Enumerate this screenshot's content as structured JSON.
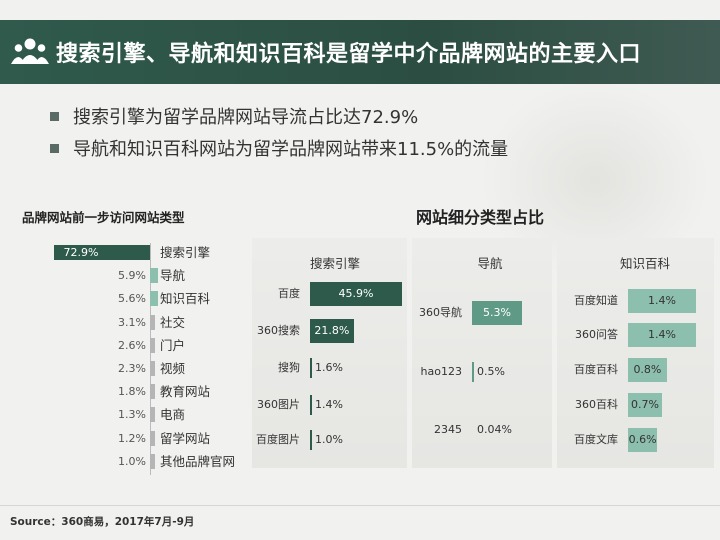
{
  "header": {
    "title": "搜索引擎、导航和知识百科是留学中介品牌网站的主要入口",
    "icon": "people-icon"
  },
  "bullets": [
    "搜索引擎为留学品牌网站导流占比达72.9%",
    "导航和知识百科网站为留学品牌网站带来11.5%的流量"
  ],
  "colors": {
    "dark_green": "#2d5a4a",
    "mid_green": "#5f9a86",
    "light_green": "#8dbfae",
    "gray_bar": "#b5b5b5"
  },
  "chart_data": [
    {
      "type": "bar",
      "title": "品牌网站前一步访问网站类型",
      "orientation": "horizontal",
      "categories": [
        "搜索引擎",
        "导航",
        "知识百科",
        "社交",
        "门户",
        "视频",
        "教育网站",
        "电商",
        "留学网站",
        "其他品牌官网"
      ],
      "values": [
        72.9,
        5.9,
        5.6,
        3.1,
        2.6,
        2.3,
        1.8,
        1.3,
        1.2,
        1.0
      ],
      "value_labels": [
        "72.9%",
        "5.9%",
        "5.6%",
        "3.1%",
        "2.6%",
        "2.3%",
        "1.8%",
        "1.3%",
        "1.2%",
        "1.0%"
      ],
      "unit": "%"
    },
    {
      "type": "bar",
      "title": "网站细分类型占比",
      "orientation": "horizontal",
      "groups": [
        {
          "name": "搜索引擎",
          "categories": [
            "百度",
            "360搜索",
            "搜狗",
            "360图片",
            "百度图片"
          ],
          "values": [
            45.9,
            21.8,
            1.6,
            1.4,
            1.0
          ],
          "value_labels": [
            "45.9%",
            "21.8%",
            "1.6%",
            "1.4%",
            "1.0%"
          ]
        },
        {
          "name": "导航",
          "categories": [
            "360导航",
            "hao123",
            "2345"
          ],
          "values": [
            5.3,
            0.5,
            0.04
          ],
          "value_labels": [
            "5.3%",
            "0.5%",
            "0.04%"
          ]
        },
        {
          "name": "知识百科",
          "categories": [
            "百度知道",
            "360问答",
            "百度百科",
            "360百科",
            "百度文库"
          ],
          "values": [
            1.4,
            1.4,
            0.8,
            0.7,
            0.6
          ],
          "value_labels": [
            "1.4%",
            "1.4%",
            "0.8%",
            "0.7%",
            "0.6%"
          ]
        }
      ],
      "unit": "%"
    }
  ],
  "source": "Source：360商易，2017年7月-9月"
}
